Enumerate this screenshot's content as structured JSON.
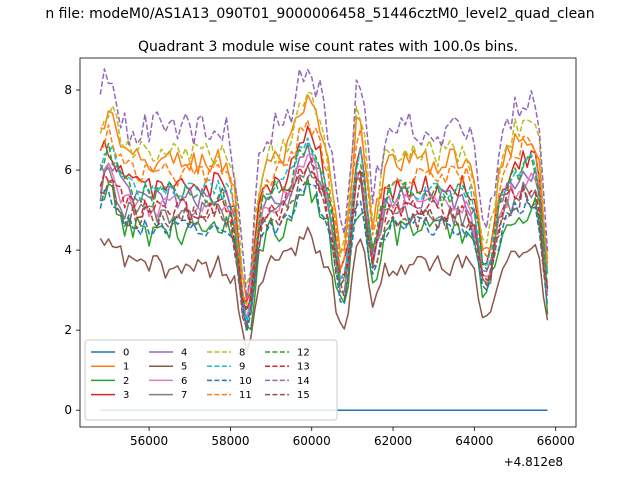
{
  "chart_data": {
    "type": "line",
    "suptitle": "n file: modeM0/AS1A13_090T01_9000006458_51446cztM0_level2_quad_clean",
    "title": "Quadrant 3 module wise count rates with 100.0s bins.",
    "xlabel": "",
    "ylabel": "",
    "x_offset_label": "+4.812e8",
    "xlim": [
      54300,
      66500
    ],
    "ylim": [
      -0.42,
      8.8
    ],
    "xticks": [
      56000,
      58000,
      60000,
      62000,
      64000,
      66000
    ],
    "xtick_labels": [
      "56000",
      "58000",
      "60000",
      "62000",
      "64000",
      "66000"
    ],
    "yticks": [
      0,
      2,
      4,
      6,
      8
    ],
    "ytick_labels": [
      "0",
      "2",
      "4",
      "6",
      "8"
    ],
    "x_start": 54800,
    "x_end": 65800,
    "bin_width": 100,
    "legend_position": "lower-left",
    "legend_columns": 4,
    "series": [
      {
        "name": "0",
        "color": "#1f77b4",
        "dash": "solid",
        "base": 0.0,
        "noise": 0.0
      },
      {
        "name": "1",
        "color": "#ff7f0e",
        "dash": "solid",
        "base": 6.2,
        "noise": 0.35
      },
      {
        "name": "2",
        "color": "#2ca02c",
        "dash": "solid",
        "base": 4.5,
        "noise": 0.4
      },
      {
        "name": "3",
        "color": "#d62728",
        "dash": "solid",
        "base": 5.6,
        "noise": 0.35
      },
      {
        "name": "4",
        "color": "#9467bd",
        "dash": "solid",
        "base": 5.3,
        "noise": 0.3
      },
      {
        "name": "5",
        "color": "#8c564b",
        "dash": "solid",
        "base": 3.6,
        "noise": 0.3
      },
      {
        "name": "6",
        "color": "#e377c2",
        "dash": "solid",
        "base": 5.1,
        "noise": 0.3
      },
      {
        "name": "7",
        "color": "#7f7f7f",
        "dash": "solid",
        "base": 4.9,
        "noise": 0.3
      },
      {
        "name": "8",
        "color": "#bcbd22",
        "dash": "dashed",
        "base": 6.4,
        "noise": 0.35
      },
      {
        "name": "9",
        "color": "#17becf",
        "dash": "dashed",
        "base": 5.5,
        "noise": 0.3
      },
      {
        "name": "10",
        "color": "#1f77b4",
        "dash": "dashed",
        "base": 4.6,
        "noise": 0.25
      },
      {
        "name": "11",
        "color": "#ff7f0e",
        "dash": "dashed",
        "base": 5.9,
        "noise": 0.3
      },
      {
        "name": "12",
        "color": "#2ca02c",
        "dash": "dashed",
        "base": 5.4,
        "noise": 0.3
      },
      {
        "name": "13",
        "color": "#d62728",
        "dash": "dashed",
        "base": 5.0,
        "noise": 0.3
      },
      {
        "name": "14",
        "color": "#9467bd",
        "dash": "dashed",
        "base": 7.0,
        "noise": 0.45
      },
      {
        "name": "15",
        "color": "#8c564b",
        "dash": "dashed",
        "base": 4.8,
        "noise": 0.3
      }
    ],
    "dips": [
      {
        "x": 58400,
        "width": 250,
        "depth": 0.55
      },
      {
        "x": 60800,
        "width": 280,
        "depth": 0.45
      },
      {
        "x": 61500,
        "width": 200,
        "depth": 0.25
      },
      {
        "x": 64300,
        "width": 260,
        "depth": 0.35
      },
      {
        "x": 65800,
        "width": 150,
        "depth": 0.45
      }
    ],
    "bumps": [
      {
        "x": 55000,
        "width": 300,
        "amp": 0.18
      },
      {
        "x": 59900,
        "width": 400,
        "amp": 0.22
      },
      {
        "x": 61100,
        "width": 250,
        "amp": 0.28
      },
      {
        "x": 65300,
        "width": 500,
        "amp": 0.12
      }
    ]
  }
}
